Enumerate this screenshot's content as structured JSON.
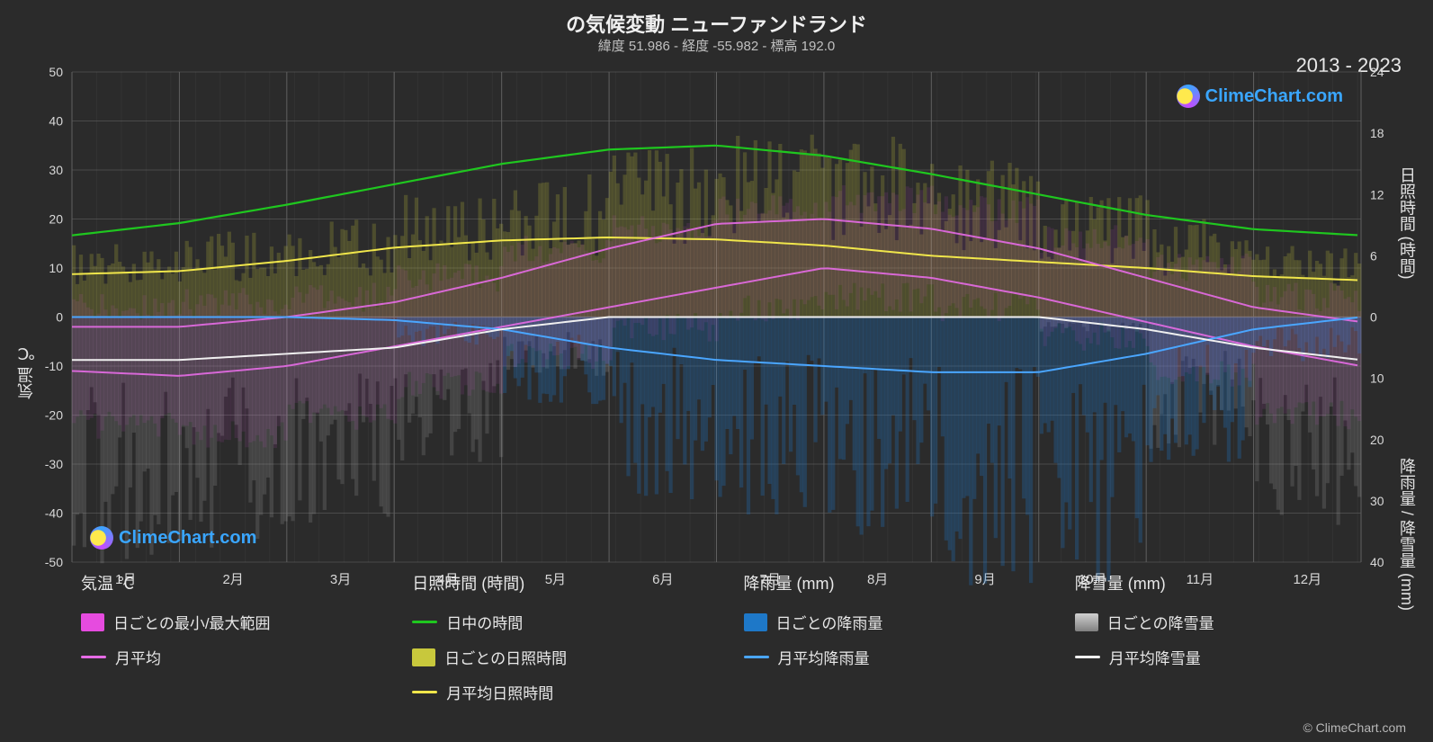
{
  "title": "の気候変動 ニューファンドランド",
  "subtitle": "緯度 51.986 - 経度 -55.982 - 標高 192.0",
  "years_label": "2013 - 2023",
  "brand": "ClimeChart.com",
  "brand_color": "#3aa6ff",
  "credit": "© ClimeChart.com",
  "background_color": "#2b2b2b",
  "text_color": "#e8e8e8",
  "grid_color": "#606060",
  "grid_minor_color": "#454545",
  "plot_bg": "#2b2b2b",
  "months": [
    "1月",
    "2月",
    "3月",
    "4月",
    "5月",
    "6月",
    "7月",
    "8月",
    "9月",
    "10月",
    "11月",
    "12月"
  ],
  "y_left": {
    "label": "気温 ℃",
    "min": -50,
    "max": 50,
    "ticks": [
      -50,
      -40,
      -30,
      -20,
      -10,
      0,
      10,
      20,
      30,
      40,
      50
    ]
  },
  "y_right_top": {
    "label": "日照時間 (時間)",
    "min": 0,
    "max": 24,
    "ticks": [
      0,
      6,
      12,
      18,
      24
    ]
  },
  "y_right_bottom": {
    "label": "降雨量 / 降雪量 (mm)",
    "min": 0,
    "max": 40,
    "ticks": [
      0,
      10,
      20,
      30,
      40
    ]
  },
  "colors": {
    "temp_range": "#e64bdf",
    "temp_avg": "#e66be6",
    "daylight": "#1fc71f",
    "sun_daily": "#c8c83c",
    "sun_avg": "#f0e64b",
    "rain_daily": "#1e78c8",
    "rain_avg": "#4aa6ff",
    "snow_daily": "#b8b8b8",
    "snow_avg": "#f0f0f0"
  },
  "legend": {
    "temp_head": "気温 ℃",
    "temp_range": "日ごとの最小/最大範囲",
    "temp_avg": "月平均",
    "sun_head": "日照時間 (時間)",
    "daylight": "日中の時間",
    "sun_daily": "日ごとの日照時間",
    "sun_avg": "月平均日照時間",
    "rain_head": "降雨量 (mm)",
    "rain_daily": "日ごとの降雨量",
    "rain_avg": "月平均降雨量",
    "snow_head": "降雪量 (mm)",
    "snow_daily": "日ごとの降雪量",
    "snow_avg": "月平均降雪量"
  },
  "lines": {
    "daylight": [
      8.0,
      9.2,
      11.0,
      13.0,
      15.0,
      16.4,
      16.8,
      15.8,
      14.0,
      12.0,
      10.0,
      8.6,
      8.0
    ],
    "sun_avg": [
      4.2,
      4.5,
      5.5,
      6.8,
      7.5,
      7.8,
      7.6,
      7.0,
      6.0,
      5.4,
      4.8,
      4.0,
      3.6
    ],
    "temp_max": [
      -2,
      -2,
      0,
      3,
      8,
      14,
      19,
      20,
      18,
      14,
      8,
      2,
      -1
    ],
    "temp_min": [
      -11,
      -12,
      -10,
      -6,
      -2,
      2,
      6,
      10,
      8,
      4,
      -1,
      -6,
      -10
    ],
    "temp_avg": [
      -6.5,
      -7,
      -5,
      -1.5,
      3,
      8,
      12.5,
      15,
      13,
      9,
      3.5,
      -2,
      -5.5
    ],
    "rain_avg": [
      0,
      0,
      0,
      0.5,
      2,
      5,
      7,
      8,
      9,
      9,
      6,
      2,
      0
    ],
    "snow_avg": [
      7,
      7,
      6,
      5,
      2,
      0,
      0,
      0,
      0,
      0,
      2,
      5,
      7
    ]
  },
  "bar_alpha": 0.15,
  "bar_noise": {
    "sun_hi": [
      6,
      7,
      8,
      10,
      12,
      14,
      15,
      15,
      13,
      10,
      8,
      6
    ],
    "temp_hi": [
      2,
      3,
      4,
      8,
      14,
      18,
      22,
      24,
      22,
      16,
      10,
      4
    ],
    "temp_lo": [
      -22,
      -24,
      -20,
      -14,
      -8,
      -2,
      2,
      4,
      2,
      -4,
      -12,
      -20
    ],
    "rain_hi": [
      0,
      0,
      0,
      4,
      12,
      25,
      28,
      30,
      38,
      36,
      20,
      6
    ],
    "snow_hi": [
      34,
      32,
      28,
      20,
      8,
      0,
      0,
      0,
      0,
      2,
      18,
      30
    ]
  }
}
